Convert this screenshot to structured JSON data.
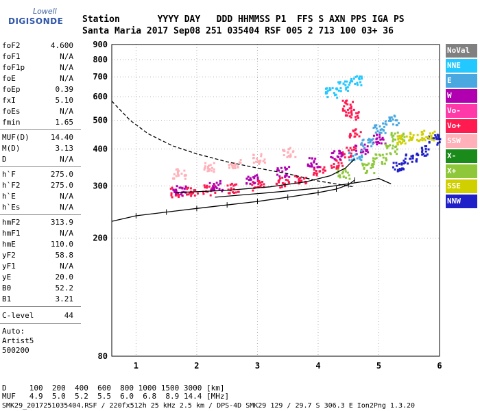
{
  "logo": {
    "line1": "Lowell",
    "line2": "DIGISONDE"
  },
  "header": {
    "row1": "Station       YYYY DAY   DDD HHMMSS P1  FFS S AXN PPS IGA PS",
    "row2": "Santa Maria 2017 Sep08 251 035404 RSF 005 2 713 100 03+ 36"
  },
  "params_group1": [
    {
      "key": "foF2",
      "value": "4.600"
    },
    {
      "key": "foF1",
      "value": "N/A"
    },
    {
      "key": "foF1p",
      "value": "N/A"
    },
    {
      "key": "foE",
      "value": "N/A"
    },
    {
      "key": "foEp",
      "value": "0.39"
    },
    {
      "key": "fxI",
      "value": "5.10"
    },
    {
      "key": "foEs",
      "value": "N/A"
    },
    {
      "key": "fmin",
      "value": "1.65"
    }
  ],
  "params_group2": [
    {
      "key": "MUF(D)",
      "value": "14.40"
    },
    {
      "key": "M(D)",
      "value": "3.13"
    },
    {
      "key": "D",
      "value": "N/A"
    }
  ],
  "params_group3": [
    {
      "key": "h`F",
      "value": "275.0"
    },
    {
      "key": "h`F2",
      "value": "275.0"
    },
    {
      "key": "h`E",
      "value": "N/A"
    },
    {
      "key": "h`Es",
      "value": "N/A"
    }
  ],
  "params_group4": [
    {
      "key": "hmF2",
      "value": "313.9"
    },
    {
      "key": "hmF1",
      "value": "N/A"
    },
    {
      "key": "hmE",
      "value": "110.0"
    },
    {
      "key": "yF2",
      "value": "58.8"
    },
    {
      "key": "yF1",
      "value": "N/A"
    },
    {
      "key": "yE",
      "value": "20.0"
    },
    {
      "key": "B0",
      "value": "52.2"
    },
    {
      "key": "B1",
      "value": "3.21"
    }
  ],
  "clevel": {
    "key": "C-level",
    "value": "44"
  },
  "auto": {
    "line1": "Auto:",
    "line2": "Artist5",
    "line3": "500200"
  },
  "legend": [
    {
      "label": "NoVal",
      "color": "#808080"
    },
    {
      "label": "NNE",
      "color": "#22c8ff"
    },
    {
      "label": "E",
      "color": "#4aa8e0"
    },
    {
      "label": "W",
      "color": "#b000b0"
    },
    {
      "label": "Vo-",
      "color": "#ff3aa8"
    },
    {
      "label": "Vo+",
      "color": "#ff1a50"
    },
    {
      "label": "SSW",
      "color": "#ffb0b8"
    },
    {
      "label": "X-",
      "color": "#1a8a1a"
    },
    {
      "label": "X+",
      "color": "#8ec83a"
    },
    {
      "label": "SSE",
      "color": "#d0d000"
    },
    {
      "label": "NNW",
      "color": "#2020c8"
    }
  ],
  "footer": {
    "row1": "D     100  200  400  600  800 1000 1500 3000 [km]",
    "row2": "MUF   4.9  5.0  5.2  5.5  6.0  6.8  8.9 14.4 [MHz]",
    "row3": "SMK29_2017251035404.RSF / 220fx512h 25 kHz 2.5 km / DPS-4D SMK29 129 / 29.7 S 306.3 E Ion2Png 1.3.20"
  },
  "chart_data": {
    "type": "scatter",
    "title": "",
    "xlabel": "",
    "ylabel": "",
    "xlim": [
      0.6,
      6.0
    ],
    "ylim": [
      80,
      900
    ],
    "x_ticks": [
      1,
      2,
      3,
      4,
      5,
      6
    ],
    "y_ticks": [
      80,
      200,
      300,
      400,
      500,
      600,
      700,
      800,
      900
    ],
    "y_scale": "log",
    "grid": true,
    "legend_position": "right",
    "series": [
      {
        "name": "Vo+",
        "color": "#ff1a50",
        "points": [
          [
            1.65,
            285
          ],
          [
            1.9,
            287
          ],
          [
            2.2,
            290
          ],
          [
            2.6,
            295
          ],
          [
            3.0,
            300
          ],
          [
            3.4,
            308
          ],
          [
            3.7,
            318
          ],
          [
            4.0,
            335
          ],
          [
            4.3,
            355
          ],
          [
            4.5,
            390
          ],
          [
            4.6,
            450
          ],
          [
            4.55,
            520
          ],
          [
            4.5,
            560
          ]
        ]
      },
      {
        "name": "W",
        "color": "#b000b0",
        "points": [
          [
            1.7,
            290
          ],
          [
            2.3,
            300
          ],
          [
            2.9,
            315
          ],
          [
            3.4,
            335
          ],
          [
            3.9,
            360
          ],
          [
            4.3,
            380
          ],
          [
            4.7,
            400
          ],
          [
            5.0,
            430
          ]
        ]
      },
      {
        "name": "X+",
        "color": "#8ec83a",
        "points": [
          [
            4.4,
            330
          ],
          [
            4.8,
            345
          ],
          [
            5.0,
            370
          ],
          [
            5.2,
            400
          ],
          [
            5.3,
            440
          ]
        ]
      },
      {
        "name": "NNW",
        "color": "#2020c8",
        "points": [
          [
            5.3,
            350
          ],
          [
            5.5,
            370
          ],
          [
            5.7,
            395
          ],
          [
            5.9,
            430
          ]
        ]
      },
      {
        "name": "SSE",
        "color": "#d0d000",
        "points": [
          [
            5.4,
            430
          ],
          [
            5.6,
            440
          ],
          [
            5.8,
            445
          ]
        ]
      },
      {
        "name": "SSW",
        "color": "#ffb0b8",
        "points": [
          [
            1.7,
            330
          ],
          [
            2.2,
            345
          ],
          [
            2.6,
            355
          ],
          [
            3.0,
            370
          ],
          [
            3.5,
            390
          ]
        ]
      },
      {
        "name": "E",
        "color": "#4aa8e0",
        "points": [
          [
            4.6,
            380
          ],
          [
            4.8,
            420
          ],
          [
            5.0,
            470
          ],
          [
            5.2,
            500
          ]
        ]
      },
      {
        "name": "NNE",
        "color": "#22c8ff",
        "points": [
          [
            4.2,
            620
          ],
          [
            4.4,
            650
          ],
          [
            4.6,
            680
          ]
        ]
      }
    ],
    "profile_curve": [
      [
        0.6,
        228
      ],
      [
        1.0,
        238
      ],
      [
        1.5,
        245
      ],
      [
        2.0,
        252
      ],
      [
        2.5,
        259
      ],
      [
        3.0,
        266
      ],
      [
        3.5,
        275
      ],
      [
        4.0,
        285
      ],
      [
        4.3,
        293
      ],
      [
        4.5,
        303
      ],
      [
        4.6,
        313.9
      ]
    ],
    "mufd_curve": [
      [
        0.6,
        580
      ],
      [
        0.9,
        500
      ],
      [
        1.2,
        450
      ],
      [
        1.6,
        410
      ],
      [
        2.0,
        385
      ],
      [
        2.5,
        362
      ],
      [
        3.0,
        345
      ],
      [
        3.5,
        330
      ],
      [
        4.0,
        312
      ],
      [
        4.5,
        300
      ],
      [
        4.6,
        298
      ]
    ],
    "o_trace_curve": [
      [
        1.65,
        285
      ],
      [
        2.5,
        290
      ],
      [
        3.2,
        298
      ],
      [
        3.8,
        310
      ],
      [
        4.2,
        325
      ],
      [
        4.45,
        345
      ],
      [
        4.6,
        370
      ]
    ],
    "x_trace_curve": [
      [
        2.3,
        275
      ],
      [
        3.2,
        285
      ],
      [
        4.0,
        295
      ],
      [
        4.5,
        305
      ],
      [
        4.8,
        312
      ],
      [
        5.0,
        318
      ],
      [
        5.2,
        305
      ]
    ]
  }
}
